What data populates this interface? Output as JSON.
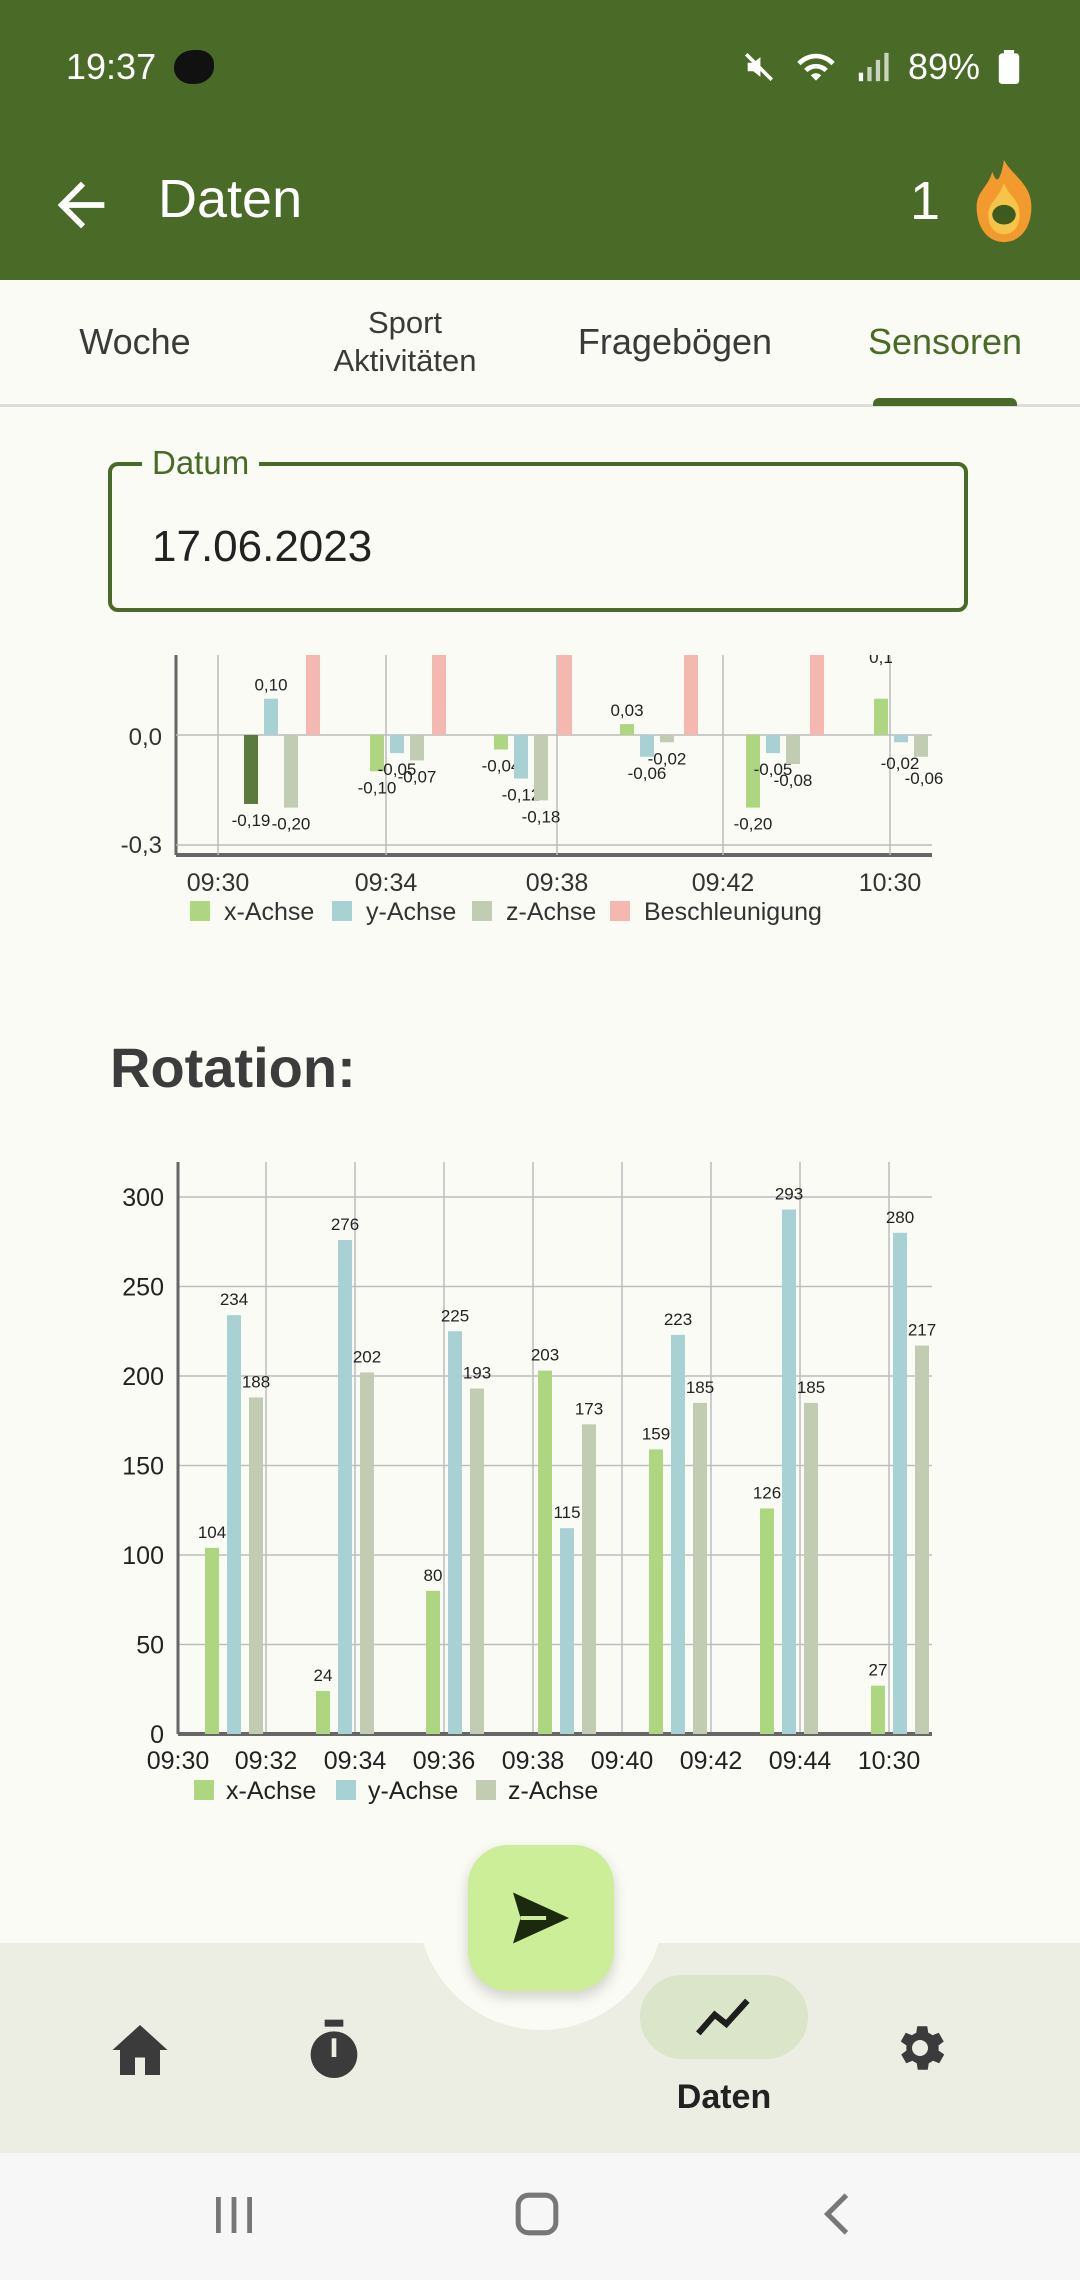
{
  "status": {
    "time": "19:37",
    "battery": "89%"
  },
  "appbar": {
    "title": "Daten",
    "streak": "1"
  },
  "tabs": [
    {
      "label": "Woche"
    },
    {
      "label": "Sport Aktivitäten"
    },
    {
      "label": "Fragebögen"
    },
    {
      "label": "Sensoren",
      "active": true
    }
  ],
  "date": {
    "label": "Datum",
    "value": "17.06.2023"
  },
  "section": {
    "rotation_title": "Rotation:"
  },
  "chart_data": [
    {
      "type": "bar",
      "title": "",
      "x_tick_labels": [
        "09:30",
        "09:34",
        "09:38",
        "09:42",
        "10:30"
      ],
      "y_tick_labels": [
        "0,0",
        "-0,3"
      ],
      "categories": [
        "09:30",
        "09:34",
        "09:38",
        "09:42",
        "10:30"
      ],
      "series": [
        {
          "name": "x-Achse",
          "values": [
            -0.19,
            -0.1,
            -0.04,
            0.03,
            -0.2
          ]
        },
        {
          "name": "y-Achse",
          "values": [
            0.1,
            -0.05,
            -0.12,
            -0.06,
            -0.05
          ]
        },
        {
          "name": "z-Achse",
          "values": [
            -0.2,
            -0.07,
            -0.18,
            -0.02,
            -0.08
          ]
        },
        {
          "name": "Beschleunigung",
          "values": [
            null,
            null,
            null,
            null,
            null
          ]
        }
      ],
      "extra_visible": {
        "x_second_bar_last_group": 0.1,
        "y_second_last_group": -0.02,
        "z_second_last_group": -0.06
      },
      "partial_label": "0,1",
      "colors": {
        "x": "#aed580",
        "x_dark": "#5c7a3e",
        "y": "#a8d1d4",
        "z": "#c1ccb2",
        "accel": "#f5b8b0"
      }
    },
    {
      "type": "bar",
      "title": "Rotation:",
      "x_tick_labels": [
        "09:30",
        "09:32",
        "09:34",
        "09:36",
        "09:38",
        "09:40",
        "09:42",
        "09:44",
        "10:30"
      ],
      "y_tick_labels": [
        "0",
        "50",
        "100",
        "150",
        "200",
        "250",
        "300"
      ],
      "ylim": [
        0,
        320
      ],
      "categories": [
        "g1",
        "g2",
        "g3",
        "g4",
        "g5",
        "g6",
        "g7"
      ],
      "series": [
        {
          "name": "x-Achse",
          "values": [
            104,
            24,
            80,
            203,
            159,
            126,
            27
          ]
        },
        {
          "name": "y-Achse",
          "values": [
            234,
            276,
            225,
            115,
            223,
            293,
            280
          ]
        },
        {
          "name": "z-Achse",
          "values": [
            188,
            202,
            193,
            173,
            185,
            185,
            217
          ]
        }
      ],
      "colors": {
        "x": "#aed580",
        "y": "#a8d1d4",
        "z": "#c1ccb2"
      }
    }
  ],
  "nav": {
    "active_label": "Daten"
  }
}
